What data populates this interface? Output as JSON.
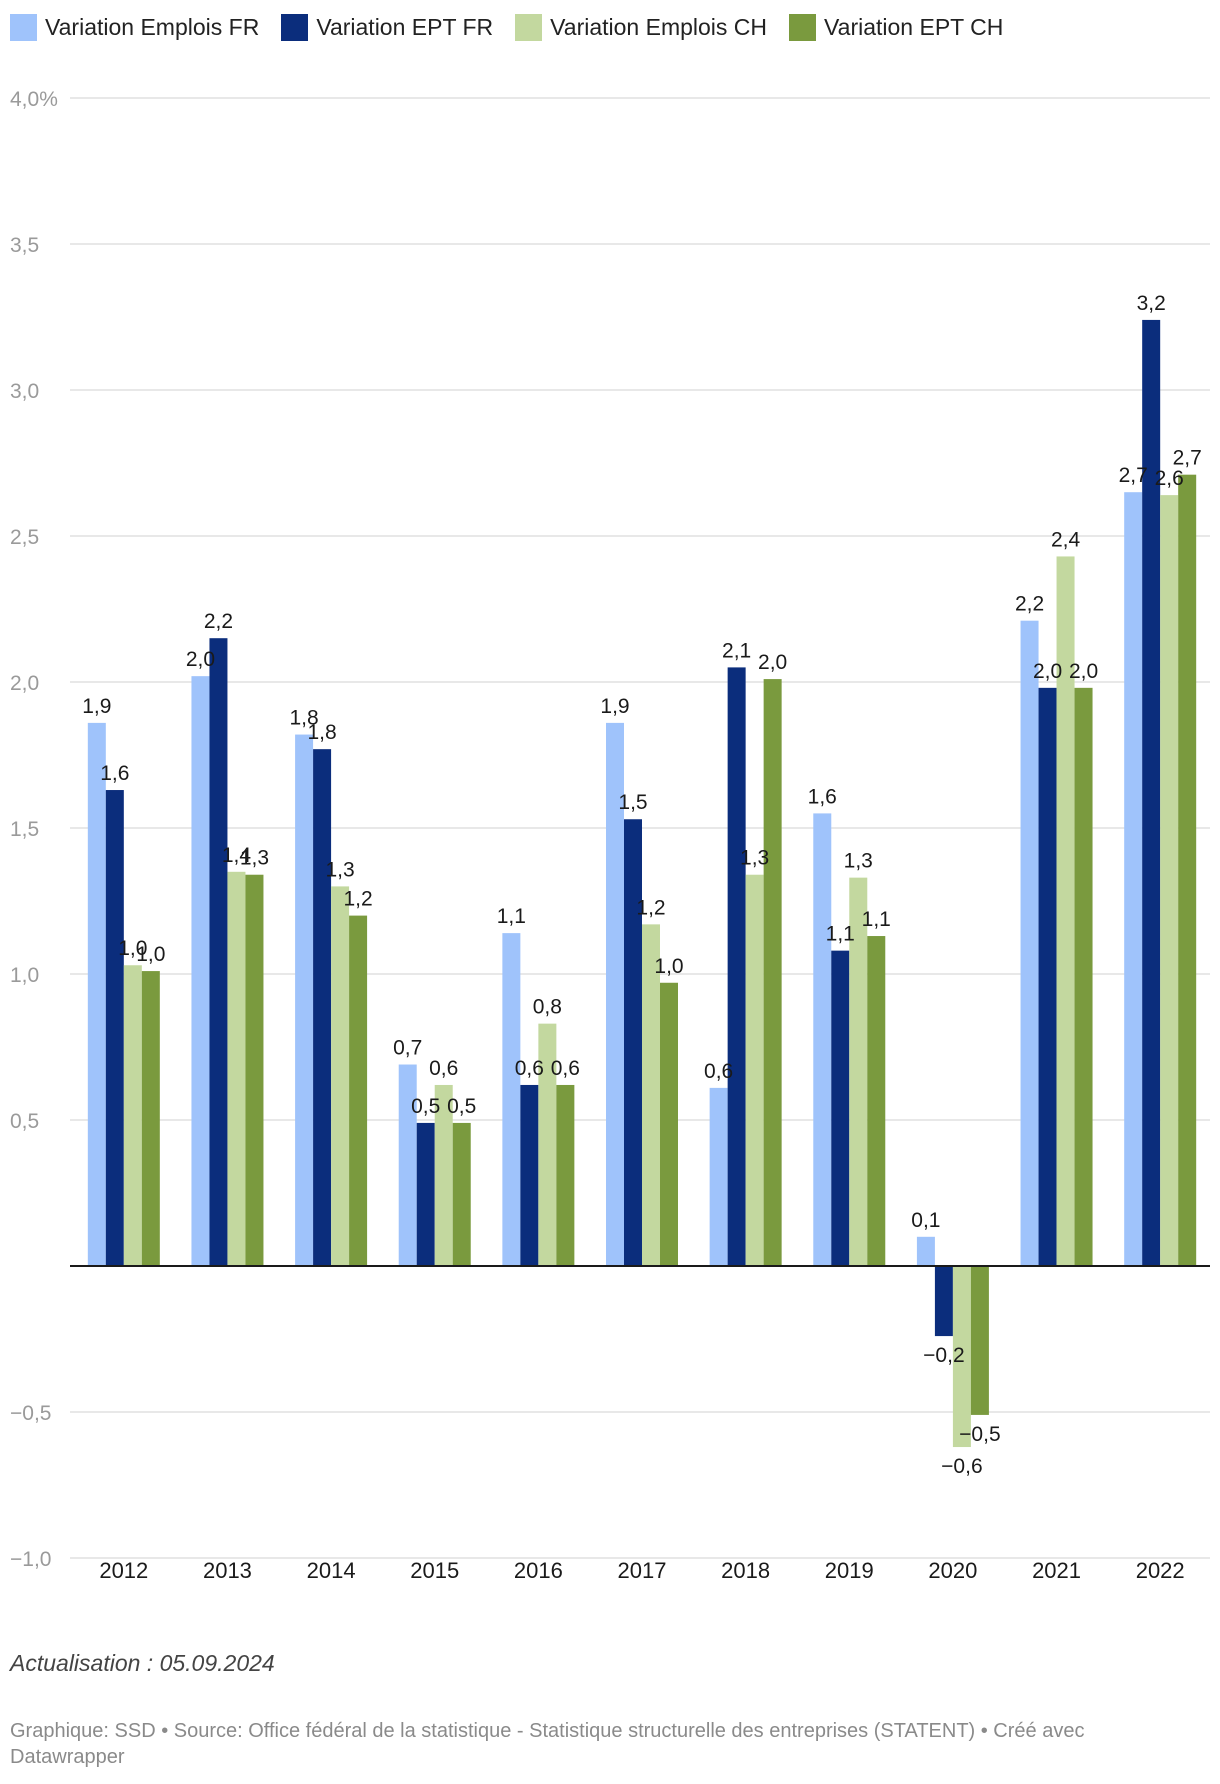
{
  "legend": [
    {
      "label": "Variation Emplois FR",
      "color": "#9fc3fb"
    },
    {
      "label": "Variation EPT FR",
      "color": "#0b2d7c"
    },
    {
      "label": "Variation Emplois CH",
      "color": "#c3d89f"
    },
    {
      "label": "Variation EPT CH",
      "color": "#7a9a3e"
    }
  ],
  "chart_data": {
    "type": "bar",
    "categories": [
      "2012",
      "2013",
      "2014",
      "2015",
      "2016",
      "2017",
      "2018",
      "2019",
      "2020",
      "2021",
      "2022"
    ],
    "series": [
      {
        "name": "Variation Emplois FR",
        "color": "#9fc3fb",
        "values": [
          1.86,
          2.02,
          1.82,
          0.69,
          1.14,
          1.86,
          0.61,
          1.55,
          0.1,
          2.21,
          2.65
        ],
        "labels": [
          "1,9",
          "2,0",
          "1,8",
          "0,7",
          "1,1",
          "1,9",
          "0,6",
          "1,6",
          "0,1",
          "2,2",
          "2,7"
        ]
      },
      {
        "name": "Variation EPT FR",
        "color": "#0b2d7c",
        "values": [
          1.63,
          2.15,
          1.77,
          0.49,
          0.62,
          1.53,
          2.05,
          1.08,
          -0.24,
          1.98,
          3.24
        ],
        "labels": [
          "1,6",
          "2,2",
          "1,8",
          "0,5",
          "0,6",
          "1,5",
          "2,1",
          "1,1",
          "−0,2",
          "2,0",
          "3,2"
        ]
      },
      {
        "name": "Variation Emplois CH",
        "color": "#c3d89f",
        "values": [
          1.03,
          1.35,
          1.3,
          0.62,
          0.83,
          1.17,
          1.34,
          1.33,
          -0.62,
          2.43,
          2.64
        ],
        "labels": [
          "1,0",
          "1,4",
          "1,3",
          "0,6",
          "0,8",
          "1,2",
          "1,3",
          "1,3",
          "−0,6",
          "2,4",
          "2,6"
        ]
      },
      {
        "name": "Variation EPT CH",
        "color": "#7a9a3e",
        "values": [
          1.01,
          1.34,
          1.2,
          0.49,
          0.62,
          0.97,
          2.01,
          1.13,
          -0.51,
          1.98,
          2.71
        ],
        "labels": [
          "1,0",
          "1,3",
          "1,2",
          "0,5",
          "0,6",
          "1,0",
          "2,0",
          "1,1",
          "−0,5",
          "2,0",
          "2,7"
        ]
      }
    ],
    "yticks": [
      {
        "value": 4.0,
        "label": "4,0%"
      },
      {
        "value": 3.5,
        "label": "3,5"
      },
      {
        "value": 3.0,
        "label": "3,0"
      },
      {
        "value": 2.5,
        "label": "2,5"
      },
      {
        "value": 2.0,
        "label": "2,0"
      },
      {
        "value": 1.5,
        "label": "1,5"
      },
      {
        "value": 1.0,
        "label": "1,0"
      },
      {
        "value": 0.5,
        "label": "0,5"
      },
      {
        "value": -0.5,
        "label": "−0,5"
      },
      {
        "value": -1.0,
        "label": "−1,0"
      }
    ],
    "ylim": [
      -1.0,
      4.0
    ],
    "grid": true,
    "title": "",
    "xlabel": "",
    "ylabel": ""
  },
  "note": "Actualisation : 05.09.2024",
  "footer": "Graphique: SSD • Source: Office fédéral de la statistique - Statistique structurelle des entreprises (STATENT) • Créé avec Datawrapper"
}
